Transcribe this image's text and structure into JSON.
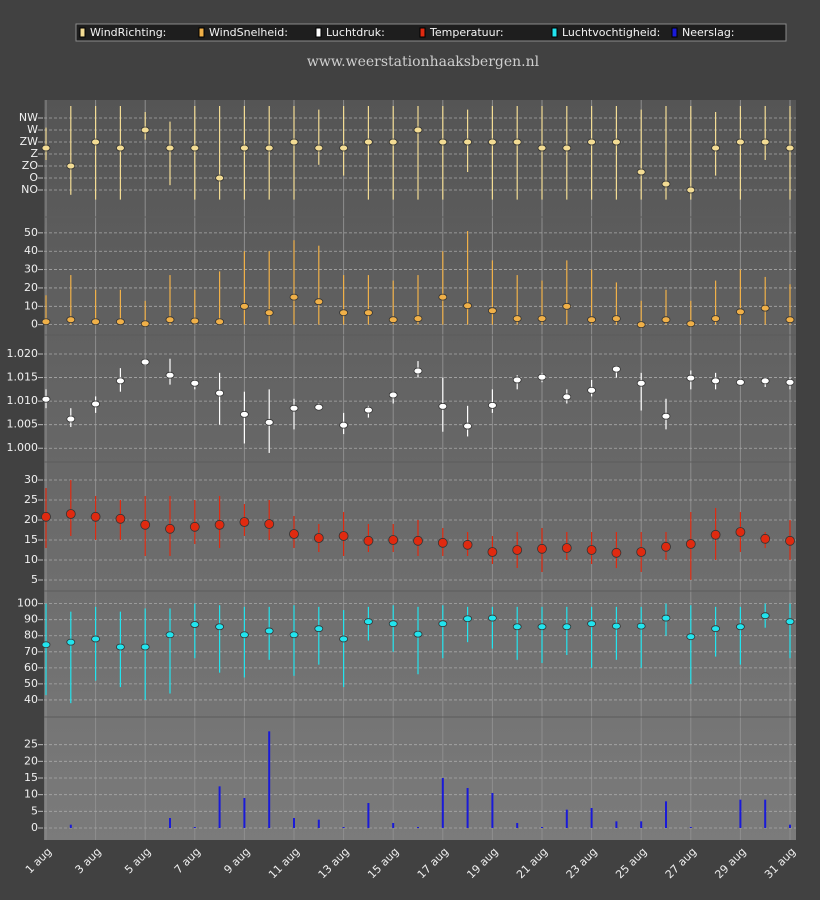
{
  "title": "www.weerstationhaaksbergen.nl",
  "categories": [
    "1 aug",
    null,
    "3 aug",
    null,
    "5 aug",
    null,
    "7 aug",
    null,
    "9 aug",
    null,
    "11 aug",
    null,
    "13 aug",
    null,
    "15 aug",
    null,
    "17 aug",
    null,
    "19 aug",
    null,
    "21 aug",
    null,
    "23 aug",
    null,
    "25 aug",
    null,
    "27 aug",
    null,
    "29 aug",
    null,
    "31 aug"
  ],
  "grid": true,
  "chart_data": [
    {
      "type": "errorbar",
      "name": "WindRichting:",
      "color": "#f3dc94",
      "ylim": [
        0,
        8
      ],
      "yticks": [
        {
          "value": 1,
          "label": "NO"
        },
        {
          "value": 2,
          "label": "O"
        },
        {
          "value": 3,
          "label": "ZO"
        },
        {
          "value": 4,
          "label": "Z"
        },
        {
          "value": 5,
          "label": "ZW"
        },
        {
          "value": 6,
          "label": "W"
        },
        {
          "value": 7,
          "label": "NW"
        }
      ],
      "values": [
        4.5,
        3,
        5,
        4.5,
        6,
        4.5,
        4.5,
        2,
        4.5,
        4.5,
        5,
        4.5,
        4.5,
        5,
        5,
        6,
        5,
        5,
        5,
        5,
        4.5,
        4.5,
        5,
        5,
        2.5,
        1.5,
        1,
        4.5,
        5,
        5,
        4.5
      ],
      "max": [
        6.2,
        8,
        8,
        8,
        7.5,
        6.7,
        8,
        8,
        8,
        8,
        8,
        7.7,
        8,
        8,
        8,
        8,
        8,
        7.7,
        8,
        8,
        8,
        8,
        8,
        8,
        7.7,
        8,
        8,
        7.5,
        8,
        8,
        8
      ],
      "min": [
        3.5,
        0.6,
        0.2,
        0.2,
        5.2,
        1.4,
        0.2,
        0.2,
        0.2,
        0.2,
        0.2,
        3.1,
        2.2,
        0.2,
        0.2,
        0.2,
        0.2,
        2.5,
        0.2,
        0.2,
        0.2,
        0.2,
        0.2,
        0.2,
        0.2,
        0.2,
        0.2,
        2.2,
        0.2,
        3.5,
        0.2
      ]
    },
    {
      "type": "errorbar",
      "name": "WindSnelheid:",
      "color": "#f0b048",
      "ylim": [
        -4,
        57
      ],
      "yticks": [
        0,
        10,
        20,
        30,
        40,
        50
      ],
      "values": [
        1.6,
        2.7,
        1.6,
        1.6,
        0.5,
        2.7,
        2,
        1.6,
        10,
        6.5,
        15,
        12.5,
        6.5,
        6.5,
        2.7,
        3.3,
        15,
        10.3,
        7.6,
        3.3,
        3.3,
        10,
        2.7,
        3.3,
        0,
        2.7,
        0.5,
        3.3,
        7,
        9,
        2.7
      ],
      "max": [
        16,
        27,
        19,
        19,
        13,
        27,
        19,
        29,
        40,
        40,
        46,
        43,
        27,
        27,
        24,
        27,
        40,
        51,
        35,
        27,
        24,
        35,
        30,
        23,
        13,
        19,
        13,
        24,
        30,
        26,
        22
      ],
      "min": [
        0,
        0,
        0,
        0,
        0,
        0,
        0,
        0,
        0,
        0,
        0,
        0,
        0,
        0,
        0,
        0,
        0,
        0,
        0,
        0,
        0,
        0,
        0,
        0,
        0,
        0,
        0,
        0,
        0,
        0,
        0
      ]
    },
    {
      "type": "errorbar",
      "name": "Luchtdruk:",
      "color": "#ffffff",
      "ylim": [
        0.9975,
        1.0234
      ],
      "yticks": [
        {
          "value": 1,
          "label": "1.000"
        },
        1.005,
        {
          "value": 1.01,
          "label": "1.010"
        },
        1.015,
        {
          "value": 1.02,
          "label": "1.020"
        }
      ],
      "values": [
        1.0104,
        1.0062,
        1.0094,
        1.0143,
        1.0183,
        1.0155,
        1.0138,
        1.0117,
        1.0072,
        1.0055,
        1.0085,
        1.0087,
        1.0049,
        1.0081,
        1.0113,
        1.0164,
        1.0089,
        1.0047,
        1.0091,
        1.0145,
        1.0151,
        1.0109,
        1.0123,
        1.0168,
        1.0138,
        1.0068,
        1.0149,
        1.0143,
        1.014,
        1.0143,
        1.014
      ],
      "max": [
        1.0125,
        1.0085,
        1.011,
        1.017,
        1.019,
        1.019,
        1.0145,
        1.016,
        1.012,
        1.0125,
        1.0105,
        1.0095,
        1.0075,
        1.009,
        1.012,
        1.0185,
        1.015,
        1.009,
        1.0125,
        1.0155,
        1.016,
        1.0125,
        1.0145,
        1.0175,
        1.016,
        1.0105,
        1.0165,
        1.016,
        1.0145,
        1.015,
        1.015
      ],
      "min": [
        1.0085,
        1.0045,
        1.0075,
        1.012,
        1.0175,
        1.0135,
        1.0125,
        1.005,
        1.001,
        0.999,
        1.004,
        1.008,
        1.003,
        1.0065,
        1.0095,
        1.015,
        1.0035,
        1.0025,
        1.0075,
        1.0125,
        1.014,
        1.0095,
        1.011,
        1.015,
        1.008,
        1.004,
        1.0125,
        1.0125,
        1.0135,
        1.013,
        1.0125
      ]
    },
    {
      "type": "errorbar",
      "name": "Temperatuur:",
      "color": "#e02a10",
      "ylim": [
        2.5,
        33.75
      ],
      "yticks": [
        5,
        10,
        15,
        20,
        25,
        30
      ],
      "values": [
        20.8,
        21.5,
        20.8,
        20.3,
        18.8,
        17.8,
        18.3,
        18.8,
        19.5,
        19,
        16.5,
        15.5,
        16,
        14.8,
        15,
        14.8,
        14.3,
        13.8,
        12,
        12.5,
        12.8,
        13,
        12.5,
        11.8,
        12,
        13.3,
        14,
        16.3,
        17,
        15.3,
        14.8
      ],
      "max": [
        28,
        30,
        26,
        25,
        26,
        26,
        25,
        26,
        24,
        25,
        21,
        19,
        22,
        19,
        19,
        20,
        18,
        17,
        16,
        17,
        18,
        17,
        17,
        17,
        17,
        17,
        22,
        23,
        22,
        17,
        20
      ],
      "min": [
        13,
        16,
        15,
        15,
        11,
        11,
        14,
        13,
        16,
        15,
        13,
        12,
        11,
        12,
        12,
        11,
        11,
        11,
        9,
        8,
        7,
        10,
        9,
        8,
        7,
        10,
        5,
        10,
        12,
        13,
        10
      ]
    },
    {
      "type": "errorbar",
      "name": "Luchtvochtigheid:",
      "color": "#22e4ee",
      "ylim": [
        30,
        106
      ],
      "yticks": [
        40,
        50,
        60,
        70,
        80,
        90,
        100
      ],
      "values": [
        74.4,
        76,
        78,
        73,
        73,
        80.6,
        87,
        85.6,
        80.6,
        83,
        80.6,
        84.4,
        78,
        88.8,
        87.5,
        81,
        87.5,
        90.6,
        91,
        85.6,
        85.6,
        85.6,
        87.5,
        86,
        86,
        91,
        79.4,
        84.4,
        85.6,
        92.5,
        88.8
      ],
      "max": [
        100,
        95,
        98,
        95,
        97,
        97,
        100,
        99,
        98,
        98,
        99,
        98,
        96,
        98,
        99,
        98,
        99,
        98,
        98,
        98,
        98,
        98,
        98,
        98,
        98,
        100,
        99,
        98,
        98,
        100,
        100
      ],
      "min": [
        43,
        38,
        52,
        48,
        40,
        44,
        66,
        57,
        54,
        65,
        55,
        62,
        48,
        77,
        70,
        56,
        66,
        76,
        72,
        65,
        63,
        68,
        60,
        65,
        60,
        80,
        50,
        67,
        62,
        85,
        66
      ]
    },
    {
      "type": "bar",
      "name": "Neerslag:",
      "color": "#1a1ad8",
      "ylim": [
        -3,
        32.4
      ],
      "yticks": [
        0,
        5,
        10,
        15,
        20,
        25
      ],
      "values": [
        0,
        1,
        0,
        0,
        0,
        3,
        0.3,
        12.5,
        9,
        29,
        3,
        2.5,
        0.3,
        7.5,
        1.5,
        0.3,
        15,
        12,
        10.5,
        1.5,
        0.3,
        5.5,
        6,
        2,
        2,
        8,
        0.3,
        0,
        8.5,
        8.5,
        1
      ]
    }
  ]
}
